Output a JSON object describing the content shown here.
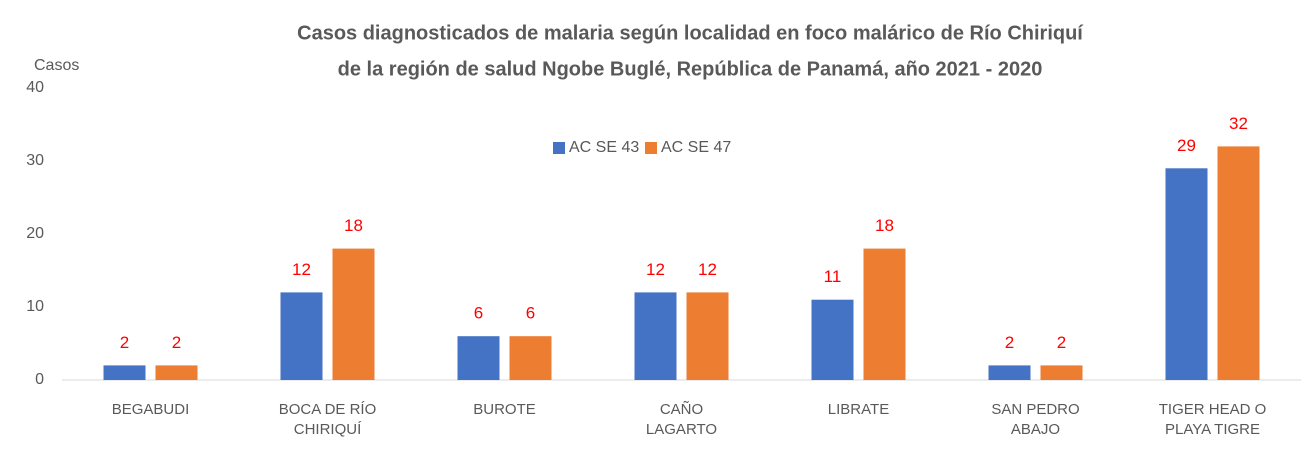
{
  "chart_data": {
    "type": "bar",
    "title": [
      "Casos diagnosticados de malaria según localidad en foco malárico de Río Chiriquí",
      "de la región de salud Ngobe Buglé, República de Panamá,  año 2021  - 2020"
    ],
    "y_label": "Casos",
    "categories": [
      "BEGABUDI",
      "BOCA DE RÍO CHIRIQUÍ",
      "BUROTE",
      "CAÑO LAGARTO",
      "LIBRATE",
      "SAN PEDRO ABAJO",
      "TIGER HEAD O PLAYA TIGRE"
    ],
    "series": [
      {
        "name": "AC SE 43",
        "color": "#4472c4",
        "values": [
          2,
          12,
          6,
          12,
          11,
          2,
          29
        ]
      },
      {
        "name": "AC SE 47",
        "color": "#ed7d31",
        "values": [
          2,
          18,
          6,
          12,
          18,
          2,
          32
        ]
      }
    ],
    "ylim": [
      0,
      40
    ],
    "yticks": [
      0,
      10,
      20,
      30,
      40
    ],
    "grid": false,
    "legend": "top"
  }
}
